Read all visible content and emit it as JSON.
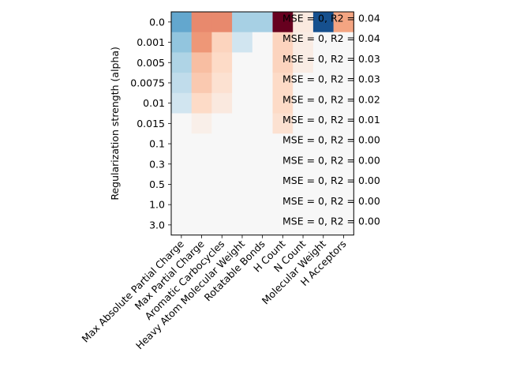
{
  "chart_data": {
    "type": "heatmap",
    "title": "",
    "xlabel": "",
    "ylabel": "Regularization strength (alpha)",
    "rows": [
      "0.0",
      "0.001",
      "0.005",
      "0.0075",
      "0.01",
      "0.015",
      "0.1",
      "0.3",
      "0.5",
      "1.0",
      "3.0"
    ],
    "columns": [
      "Max Absolute Partial Charge",
      "Max Partial Charge",
      "Aromatic Carbocycles",
      "Heavy Atom Molecular Weight",
      "Rotatable Bonds",
      "H Count",
      "N Count",
      "Molecular Weight",
      "H Acceptors"
    ],
    "values": [
      [
        -0.4,
        0.35,
        0.35,
        -0.2,
        -0.2,
        1.0,
        0.05,
        -0.85,
        0.25
      ],
      [
        -0.25,
        0.3,
        0.12,
        -0.1,
        0.0,
        0.12,
        0.04,
        0.0,
        0.0
      ],
      [
        -0.18,
        0.18,
        0.1,
        0.0,
        0.0,
        0.12,
        0.04,
        0.0,
        0.0
      ],
      [
        -0.14,
        0.15,
        0.08,
        0.0,
        0.0,
        0.1,
        0.0,
        0.0,
        0.0
      ],
      [
        -0.1,
        0.1,
        0.05,
        0.0,
        0.0,
        0.1,
        0.0,
        0.0,
        0.0
      ],
      [
        0.0,
        0.03,
        0.0,
        0.0,
        0.0,
        0.08,
        0.0,
        0.0,
        0.0
      ],
      [
        0.0,
        0.0,
        0.0,
        0.0,
        0.0,
        0.0,
        0.0,
        0.0,
        0.0
      ],
      [
        0.0,
        0.0,
        0.0,
        0.0,
        0.0,
        0.0,
        0.0,
        0.0,
        0.0
      ],
      [
        0.0,
        0.0,
        0.0,
        0.0,
        0.0,
        0.0,
        0.0,
        0.0,
        0.0
      ],
      [
        0.0,
        0.0,
        0.0,
        0.0,
        0.0,
        0.0,
        0.0,
        0.0,
        0.0
      ],
      [
        0.0,
        0.0,
        0.0,
        0.0,
        0.0,
        0.0,
        0.0,
        0.0,
        0.0
      ]
    ],
    "colormap": "RdBu_r",
    "vlim": [
      -1,
      1
    ],
    "annotations": [
      "MSE = 0, R2 = 0.04",
      "MSE = 0, R2 = 0.04",
      "MSE = 0, R2 = 0.03",
      "MSE = 0, R2 = 0.03",
      "MSE = 0, R2 = 0.02",
      "MSE = 0, R2 = 0.01",
      "MSE = 0, R2 = 0.00",
      "MSE = 0, R2 = 0.00",
      "MSE = 0, R2 = 0.00",
      "MSE = 0, R2 = 0.00",
      "MSE = 0, R2 = 0.00"
    ],
    "grid": false,
    "legend": "none"
  }
}
